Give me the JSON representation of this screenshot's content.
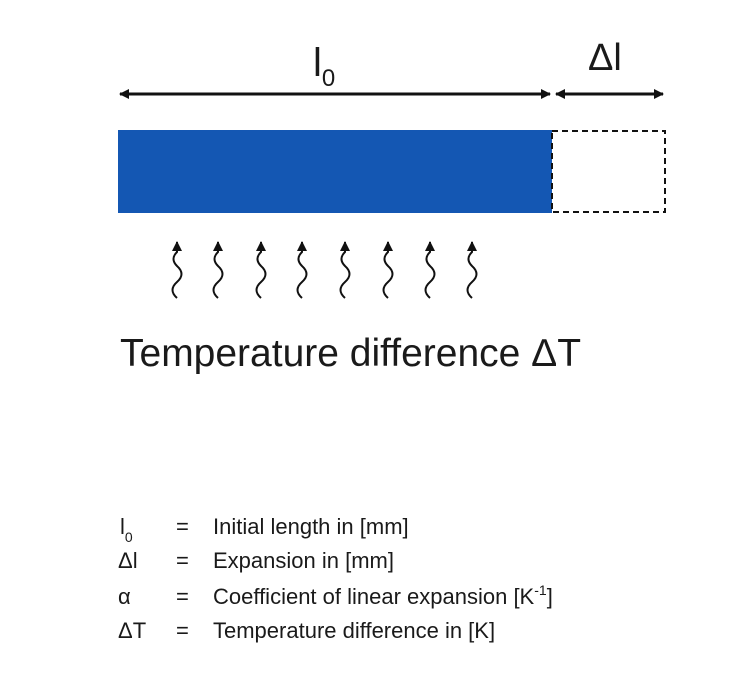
{
  "diagram": {
    "length_label": {
      "symbol": "l",
      "subscript": "0"
    },
    "expansion_label": "Δl",
    "caption": "Temperature difference ΔT"
  },
  "legend": {
    "rows": [
      {
        "symbol": "l",
        "subscript": "0",
        "equals": "=",
        "text": "Initial length in [mm]"
      },
      {
        "symbol": "Δl",
        "equals": "=",
        "text": "Expansion in [mm]"
      },
      {
        "symbol": "α",
        "equals": "=",
        "text": "Coefficient of linear expansion [K",
        "superscript": "-1",
        "text_end": "]"
      },
      {
        "symbol": "ΔT",
        "equals": "=",
        "text": "Temperature difference in [K]"
      }
    ]
  }
}
